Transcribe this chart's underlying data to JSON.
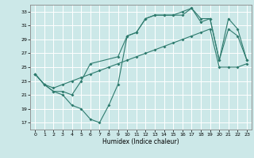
{
  "title": "",
  "xlabel": "Humidex (Indice chaleur)",
  "bg_color": "#cce8e8",
  "grid_color": "#ffffff",
  "line_color": "#2e7b6e",
  "xlim": [
    -0.5,
    23.5
  ],
  "ylim": [
    16.0,
    34.0
  ],
  "yticks": [
    17,
    19,
    21,
    23,
    25,
    27,
    29,
    31,
    33
  ],
  "xticks": [
    0,
    1,
    2,
    3,
    4,
    5,
    6,
    7,
    8,
    9,
    10,
    11,
    12,
    13,
    14,
    15,
    16,
    17,
    18,
    19,
    20,
    21,
    22,
    23
  ],
  "line1_x": [
    0,
    1,
    2,
    3,
    4,
    5,
    6,
    7,
    8,
    9,
    10,
    11,
    12,
    13,
    14,
    15,
    16,
    17,
    18,
    19,
    20,
    21,
    22,
    23
  ],
  "line1_y": [
    24.0,
    22.5,
    21.5,
    21.0,
    19.5,
    19.0,
    17.5,
    17.0,
    19.5,
    22.5,
    29.5,
    30.0,
    32.0,
    32.5,
    32.5,
    32.5,
    33.0,
    33.5,
    31.5,
    32.0,
    26.0,
    30.5,
    29.5,
    26.0
  ],
  "line2_x": [
    0,
    1,
    2,
    3,
    4,
    5,
    6,
    7,
    8,
    9,
    10,
    11,
    12,
    13,
    14,
    15,
    16,
    17,
    18,
    19,
    20,
    21,
    22,
    23
  ],
  "line2_y": [
    24.0,
    22.5,
    22.0,
    22.5,
    23.0,
    23.5,
    24.0,
    24.5,
    25.0,
    25.5,
    26.0,
    26.5,
    27.0,
    27.5,
    28.0,
    28.5,
    29.0,
    29.5,
    30.0,
    30.5,
    25.0,
    25.0,
    25.0,
    25.5
  ],
  "line3_x": [
    0,
    1,
    2,
    3,
    4,
    5,
    6,
    9,
    10,
    11,
    12,
    13,
    14,
    15,
    16,
    17,
    18,
    19,
    20,
    21,
    22,
    23
  ],
  "line3_y": [
    24.0,
    22.5,
    21.5,
    21.5,
    21.0,
    23.0,
    25.5,
    26.5,
    29.5,
    30.0,
    32.0,
    32.5,
    32.5,
    32.5,
    32.5,
    33.5,
    32.0,
    32.0,
    26.0,
    32.0,
    30.5,
    26.0
  ]
}
